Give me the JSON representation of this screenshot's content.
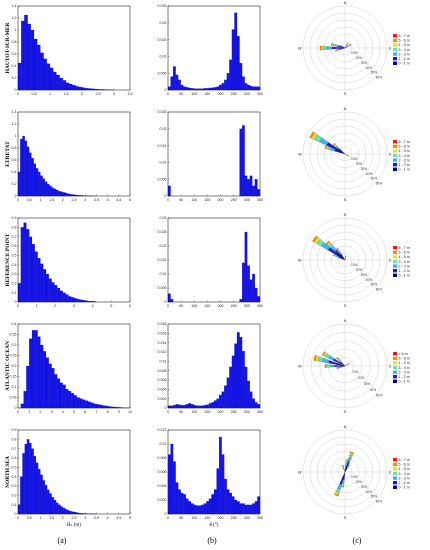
{
  "figure": {
    "captions": [
      "(a)",
      "(b)",
      "(c)"
    ],
    "bar_color": "#1414e6",
    "rose_colors": [
      "#000080",
      "#2020c8",
      "#3fb0ff",
      "#6fe0b0",
      "#e0e040",
      "#ff8c00",
      "#e02020",
      "#700000"
    ]
  },
  "chart_data": [
    {
      "type": "bar",
      "row": "HAUTOT-SUR-MER",
      "panel": "a",
      "xlabel": "",
      "ylabel": "",
      "xlim": [
        0,
        3.5
      ],
      "ylim": [
        0,
        1.4
      ],
      "xticks": [
        "0",
        "0.5",
        "1",
        "1.5",
        "2",
        "2.5",
        "3",
        "3.5"
      ],
      "yticks": [
        "0",
        "0.2",
        "0.4",
        "0.6",
        "0.8",
        "1",
        "1.2",
        "1.4"
      ],
      "bin_width": 0.1,
      "values": [
        0.45,
        1.15,
        1.25,
        1.1,
        1.0,
        0.85,
        0.75,
        0.62,
        0.52,
        0.44,
        0.37,
        0.3,
        0.25,
        0.2,
        0.16,
        0.12,
        0.1,
        0.08,
        0.06,
        0.05,
        0.04,
        0.03,
        0.025,
        0.02,
        0.015,
        0.01,
        0.01,
        0.008,
        0.006,
        0.005
      ]
    },
    {
      "type": "bar",
      "row": "HAUTOT-SUR-MER",
      "panel": "b",
      "xlabel": "",
      "ylabel": "",
      "xlim": [
        0,
        360
      ],
      "ylim": [
        0,
        0.025
      ],
      "xticks": [
        "0",
        "50",
        "100",
        "150",
        "200",
        "250",
        "300",
        "350"
      ],
      "yticks": [
        "0",
        "0.005",
        "0.01",
        "0.015",
        "0.02",
        "0.025"
      ],
      "bin_width": 10,
      "values": [
        0.001,
        0.004,
        0.007,
        0.0045,
        0.003,
        0.0015,
        0.001,
        0.0008,
        0.0006,
        0.0005,
        0.0004,
        0.0004,
        0.0004,
        0.0004,
        0.0005,
        0.0005,
        0.0006,
        0.0007,
        0.0008,
        0.001,
        0.0015,
        0.002,
        0.003,
        0.005,
        0.009,
        0.018,
        0.023,
        0.016,
        0.008,
        0.004,
        0.002,
        0.0015,
        0.0012,
        0.001,
        0.001,
        0.001
      ]
    },
    {
      "type": "bar",
      "row": "ETRETAT",
      "panel": "a",
      "xlabel": "",
      "ylabel": "",
      "xlim": [
        0,
        5
      ],
      "ylim": [
        0,
        1.4
      ],
      "xticks": [
        "0",
        "0.5",
        "1",
        "1.5",
        "2",
        "2.5",
        "3",
        "3.5",
        "4",
        "4.5",
        "5"
      ],
      "yticks": [
        "0",
        "0.2",
        "0.4",
        "0.6",
        "0.8",
        "1",
        "1.2",
        "1.4"
      ],
      "bin_width": 0.1,
      "values": [
        0.4,
        0.95,
        1.0,
        0.92,
        0.82,
        0.72,
        0.63,
        0.54,
        0.46,
        0.4,
        0.34,
        0.29,
        0.24,
        0.2,
        0.17,
        0.14,
        0.12,
        0.1,
        0.08,
        0.07,
        0.06,
        0.05,
        0.04,
        0.03,
        0.025,
        0.02,
        0.016,
        0.012,
        0.01,
        0.008,
        0.006,
        0.005,
        0.004,
        0.003,
        0.002
      ]
    },
    {
      "type": "bar",
      "row": "ETRETAT",
      "panel": "b",
      "xlabel": "",
      "ylabel": "",
      "xlim": [
        0,
        360
      ],
      "ylim": [
        0,
        0.025
      ],
      "xticks": [
        "0",
        "50",
        "100",
        "150",
        "200",
        "250",
        "300",
        "350"
      ],
      "yticks": [
        "0",
        "0.005",
        "0.01",
        "0.015",
        "0.02",
        "0.025"
      ],
      "bin_width": 10,
      "values": [
        0.003,
        0,
        0,
        0,
        0,
        0,
        0,
        0,
        0,
        0,
        0,
        0,
        0,
        0,
        0,
        0,
        0,
        0,
        0,
        0,
        0,
        0,
        0,
        0,
        0,
        0,
        0,
        0,
        0.02,
        0.021,
        0.006,
        0.005,
        0.006,
        0.003,
        0.005,
        0.002
      ]
    },
    {
      "type": "bar",
      "row": "REFERENCE POINT",
      "panel": "a",
      "xlabel": "",
      "ylabel": "",
      "xlim": [
        0,
        6
      ],
      "ylim": [
        0,
        0.9
      ],
      "xticks": [
        "0",
        "1",
        "2",
        "3",
        "4",
        "5",
        "6"
      ],
      "yticks": [
        "0",
        "0.1",
        "0.2",
        "0.3",
        "0.4",
        "0.5",
        "0.6",
        "0.7",
        "0.8",
        "0.9"
      ],
      "bin_width": 0.15,
      "values": [
        0.2,
        0.8,
        0.85,
        0.78,
        0.7,
        0.62,
        0.54,
        0.47,
        0.41,
        0.35,
        0.3,
        0.25,
        0.21,
        0.18,
        0.15,
        0.12,
        0.1,
        0.08,
        0.06,
        0.05,
        0.04,
        0.03,
        0.025,
        0.02,
        0.015,
        0.01,
        0.008,
        0.006
      ]
    },
    {
      "type": "bar",
      "row": "REFERENCE POINT",
      "panel": "b",
      "xlabel": "",
      "ylabel": "",
      "xlim": [
        0,
        360
      ],
      "ylim": [
        0,
        0.03
      ],
      "xticks": [
        "0",
        "50",
        "100",
        "150",
        "200",
        "250",
        "300",
        "350"
      ],
      "yticks": [
        "0",
        "0.005",
        "0.01",
        "0.015",
        "0.02",
        "0.025",
        "0.03"
      ],
      "bin_width": 10,
      "values": [
        0.003,
        0.001,
        0,
        0,
        0,
        0,
        0,
        0,
        0,
        0,
        0,
        0,
        0,
        0,
        0,
        0,
        0,
        0,
        0,
        0,
        0,
        0,
        0,
        0,
        0,
        0,
        0,
        0,
        0.001,
        0.014,
        0.025,
        0.013,
        0.008,
        0.01,
        0.005,
        0.002
      ]
    },
    {
      "type": "bar",
      "row": "ATLANTIC OCEAN",
      "panel": "a",
      "xlabel": "",
      "ylabel": "",
      "xlim": [
        0,
        10
      ],
      "ylim": [
        0,
        0.4
      ],
      "xticks": [
        "0",
        "1",
        "2",
        "3",
        "4",
        "5",
        "6",
        "7",
        "8",
        "9",
        "10"
      ],
      "yticks": [
        "0",
        "0.05",
        "0.1",
        "0.15",
        "0.2",
        "0.25",
        "0.3",
        "0.35",
        "0.4"
      ],
      "bin_width": 0.25,
      "values": [
        0.0,
        0.02,
        0.08,
        0.2,
        0.33,
        0.37,
        0.37,
        0.34,
        0.3,
        0.27,
        0.24,
        0.21,
        0.19,
        0.16,
        0.14,
        0.12,
        0.11,
        0.09,
        0.08,
        0.07,
        0.06,
        0.05,
        0.045,
        0.04,
        0.035,
        0.03,
        0.025,
        0.02,
        0.018,
        0.015,
        0.012,
        0.01,
        0.008,
        0.006,
        0.005,
        0.004,
        0.003,
        0.002,
        0.002,
        0.001
      ]
    },
    {
      "type": "bar",
      "row": "ATLANTIC OCEAN",
      "panel": "b",
      "xlabel": "",
      "ylabel": "",
      "xlim": [
        0,
        360
      ],
      "ylim": [
        0,
        0.018
      ],
      "xticks": [
        "0",
        "50",
        "100",
        "150",
        "200",
        "250",
        "300",
        "350"
      ],
      "yticks": [
        "0",
        "0.002",
        "0.004",
        "0.006",
        "0.008",
        "0.01",
        "0.012",
        "0.014",
        "0.016",
        "0.018"
      ],
      "bin_width": 10,
      "values": [
        0.0005,
        0.0005,
        0.0006,
        0.0008,
        0.0007,
        0.0006,
        0.0006,
        0.0008,
        0.001,
        0.0008,
        0.0006,
        0.0005,
        0.0005,
        0.0005,
        0.0006,
        0.0007,
        0.001,
        0.0012,
        0.0016,
        0.002,
        0.0028,
        0.0035,
        0.0048,
        0.0065,
        0.0088,
        0.0112,
        0.0138,
        0.0162,
        0.0152,
        0.0122,
        0.0088,
        0.0058,
        0.0035,
        0.002,
        0.0012,
        0.0008
      ]
    },
    {
      "type": "bar",
      "row": "NORTH SEA",
      "panel": "a",
      "xlabel": "Hₛ (m)",
      "ylabel": "",
      "xlim": [
        0,
        5
      ],
      "ylim": [
        0,
        0.9
      ],
      "xticks": [
        "0",
        "0.5",
        "1",
        "1.5",
        "2",
        "2.5",
        "3",
        "3.5",
        "4",
        "4.5",
        "5"
      ],
      "yticks": [
        "0",
        "0.1",
        "0.2",
        "0.3",
        "0.4",
        "0.5",
        "0.6",
        "0.7",
        "0.8",
        "0.9"
      ],
      "bin_width": 0.1,
      "values": [
        0.1,
        0.4,
        0.65,
        0.75,
        0.8,
        0.76,
        0.7,
        0.62,
        0.55,
        0.48,
        0.42,
        0.36,
        0.31,
        0.26,
        0.22,
        0.18,
        0.15,
        0.12,
        0.1,
        0.08,
        0.065,
        0.05,
        0.04,
        0.03,
        0.025,
        0.02,
        0.015,
        0.01,
        0.008,
        0.006,
        0.005,
        0.004,
        0.003,
        0.002,
        0.002
      ]
    },
    {
      "type": "bar",
      "row": "NORTH SEA",
      "panel": "b",
      "xlabel": "θ (°)",
      "ylabel": "",
      "xlim": [
        0,
        360
      ],
      "ylim": [
        0,
        0.012
      ],
      "xticks": [
        "0",
        "50",
        "100",
        "150",
        "200",
        "250",
        "300",
        "350"
      ],
      "yticks": [
        "0",
        "0.002",
        "0.004",
        "0.006",
        "0.008",
        "0.01",
        "0.012"
      ],
      "bin_width": 10,
      "values": [
        0.0085,
        0.01,
        0.0075,
        0.0045,
        0.0035,
        0.003,
        0.0028,
        0.0022,
        0.0018,
        0.0015,
        0.0013,
        0.0012,
        0.0012,
        0.0013,
        0.0015,
        0.0018,
        0.0022,
        0.0028,
        0.0035,
        0.0065,
        0.011,
        0.0085,
        0.005,
        0.0035,
        0.003,
        0.0025,
        0.002,
        0.0018,
        0.0015,
        0.0015,
        0.0013,
        0.0013,
        0.0013,
        0.0015,
        0.0018,
        0.0025
      ]
    }
  ],
  "roses": [
    {
      "row": "HAUTOT-SUR-MER",
      "legend": [
        "6 - 7 m",
        "5 - 6 m",
        "4 - 5 m",
        "3 - 4 m",
        "2 - 3 m",
        "1 - 2 m",
        "0 - 1 m"
      ],
      "rings": [
        "10%",
        "20%",
        "30%",
        "40%",
        "50%",
        "60%"
      ],
      "rmax": 60,
      "petals": [
        {
          "dir": 270,
          "len": 36
        },
        {
          "dir": 285,
          "len": 20
        },
        {
          "dir": 255,
          "len": 14
        },
        {
          "dir": 60,
          "len": 10
        },
        {
          "dir": 30,
          "len": 8
        },
        {
          "dir": 300,
          "len": 8
        }
      ]
    },
    {
      "row": "ETRETAT",
      "legend": [
        "6 - 7 m",
        "5 - 6 m",
        "4 - 5 m",
        "3 - 4 m",
        "2 - 3 m",
        "1 - 2 m",
        "0 - 1 m"
      ],
      "rings": [
        "10%",
        "20%",
        "30%",
        "40%",
        "50%",
        "60%"
      ],
      "rmax": 60,
      "petals": [
        {
          "dir": 300,
          "len": 56
        },
        {
          "dir": 290,
          "len": 30
        },
        {
          "dir": 310,
          "len": 22
        },
        {
          "dir": 120,
          "len": 6
        }
      ]
    },
    {
      "row": "REFERENCE POINT",
      "legend": [
        "6 - 7 m",
        "5 - 6 m",
        "4 - 5 m",
        "3 - 4 m",
        "2 - 3 m",
        "1 - 2 m",
        "0 - 1 m"
      ],
      "rings": [
        "10%",
        "20%",
        "30%",
        "40%",
        "50%",
        "60%"
      ],
      "rmax": 60,
      "petals": [
        {
          "dir": 305,
          "len": 54
        },
        {
          "dir": 315,
          "len": 36
        },
        {
          "dir": 325,
          "len": 20
        },
        {
          "dir": 295,
          "len": 18
        },
        {
          "dir": 10,
          "len": 6
        }
      ]
    },
    {
      "row": "ATLANTIC OCEAN",
      "legend": [
        "> 6 m",
        "5 - 6 m",
        "4 - 5 m",
        "3 - 4 m",
        "2 - 3 m",
        "1 - 2 m",
        "0 - 1 m"
      ],
      "rings": [
        "10%",
        "20%",
        "30%",
        "40%",
        "50%"
      ],
      "rmax": 50,
      "petals": [
        {
          "dir": 285,
          "len": 38
        },
        {
          "dir": 300,
          "len": 30
        },
        {
          "dir": 270,
          "len": 24
        },
        {
          "dir": 315,
          "len": 14
        },
        {
          "dir": 255,
          "len": 10
        },
        {
          "dir": 60,
          "len": 6
        }
      ]
    },
    {
      "row": "NORTH SEA",
      "legend": [
        "6 - 7 m",
        "5 - 6 m",
        "4 - 5 m",
        "3 - 4 m",
        "2 - 3 m",
        "1 - 2 m",
        "0 - 1 m"
      ],
      "rings": [
        "10%",
        "20%",
        "30%",
        "40%",
        "50%",
        "60%"
      ],
      "rmax": 60,
      "petals": [
        {
          "dir": 200,
          "len": 36
        },
        {
          "dir": 20,
          "len": 30
        },
        {
          "dir": 190,
          "len": 22
        },
        {
          "dir": 10,
          "len": 18
        },
        {
          "dir": 30,
          "len": 12
        },
        {
          "dir": 340,
          "len": 10
        }
      ]
    }
  ],
  "compass": [
    "N",
    "E",
    "S",
    "W"
  ]
}
